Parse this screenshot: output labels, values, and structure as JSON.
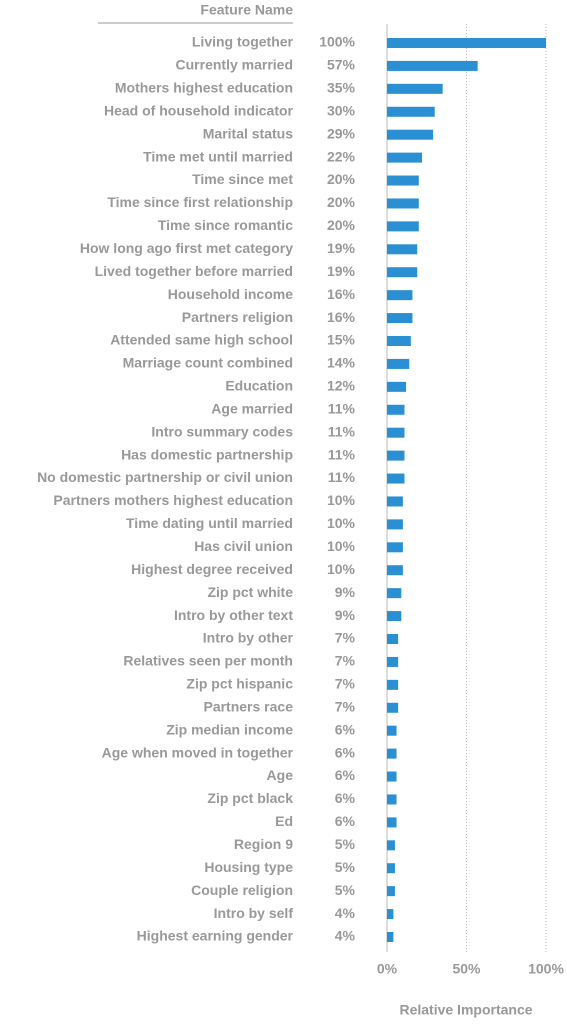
{
  "chart_data": {
    "type": "bar",
    "orientation": "horizontal",
    "category_header": "Feature Name",
    "xlabel": "Relative Importance",
    "color": "#2b8fd3",
    "categories": [
      "Living together",
      "Currently married",
      "Mothers highest education",
      "Head of household indicator",
      "Marital status",
      "Time met until married",
      "Time since met",
      "Time since first relationship",
      "Time since romantic",
      "How long ago first met category",
      "Lived together before married",
      "Household income",
      "Partners religion",
      "Attended same high school",
      "Marriage count combined",
      "Education",
      "Age married",
      "Intro summary codes",
      "Has domestic partnership",
      "No domestic partnership or civil union",
      "Partners mothers highest education",
      "Time dating until married",
      "Has civil union",
      "Highest degree received",
      "Zip pct white",
      "Intro by other text",
      "Intro by other",
      "Relatives seen per month",
      "Zip pct hispanic",
      "Partners race",
      "Zip median income",
      "Age when moved in together",
      "Age",
      "Zip pct black",
      "Ed",
      "Region 9",
      "Housing type",
      "Couple religion",
      "Intro by self",
      "Highest earning gender"
    ],
    "values": [
      100,
      57,
      35,
      30,
      29,
      22,
      20,
      20,
      20,
      19,
      19,
      16,
      16,
      15,
      14,
      12,
      11,
      11,
      11,
      11,
      10,
      10,
      10,
      10,
      9,
      9,
      7,
      7,
      7,
      7,
      6,
      6,
      6,
      6,
      6,
      5,
      5,
      5,
      4,
      4
    ],
    "value_labels": [
      "100%",
      "57%",
      "35%",
      "30%",
      "29%",
      "22%",
      "20%",
      "20%",
      "20%",
      "19%",
      "19%",
      "16%",
      "16%",
      "15%",
      "14%",
      "12%",
      "11%",
      "11%",
      "11%",
      "11%",
      "10%",
      "10%",
      "10%",
      "10%",
      "9%",
      "9%",
      "7%",
      "7%",
      "7%",
      "7%",
      "6%",
      "6%",
      "6%",
      "6%",
      "6%",
      "5%",
      "5%",
      "5%",
      "4%",
      "4%"
    ],
    "xlim": [
      0,
      100
    ],
    "xticks": [
      {
        "value": 0,
        "label": "0%"
      },
      {
        "value": 50,
        "label": "50%"
      },
      {
        "value": 100,
        "label": "100%"
      }
    ],
    "grid": true
  }
}
